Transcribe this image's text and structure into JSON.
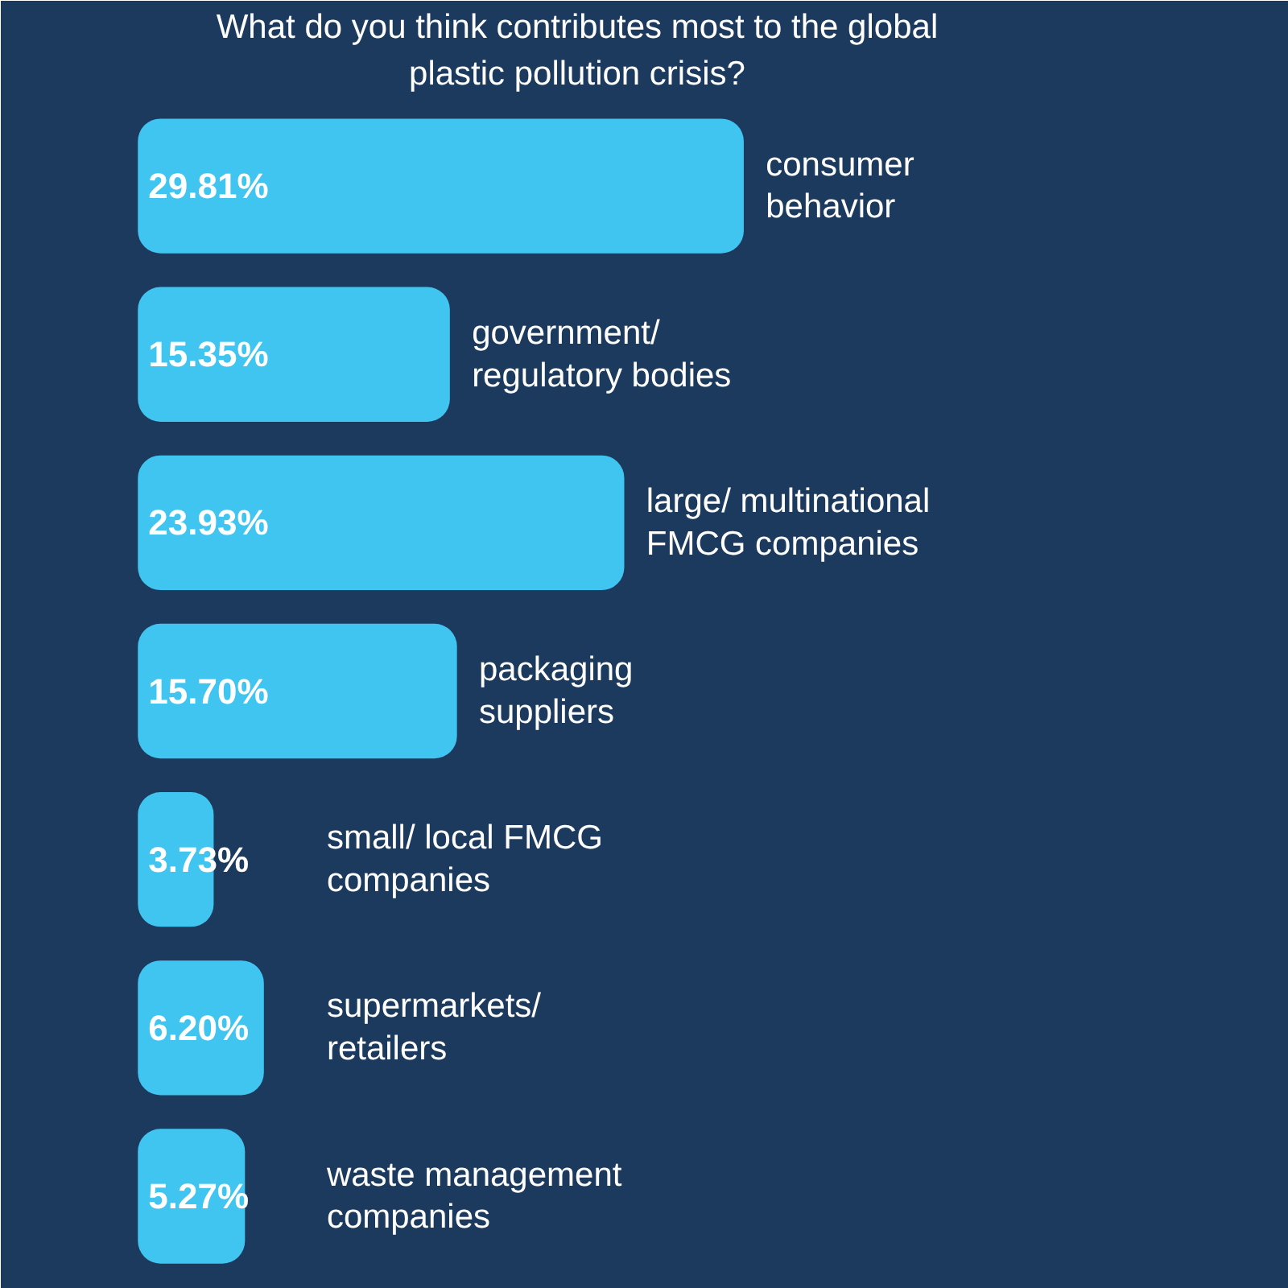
{
  "chart_data": {
    "type": "bar",
    "orientation": "horizontal",
    "title": "What do you think contributes most to the global\nplastic pollution crisis?",
    "categories": [
      "consumer\nbehavior",
      "government/\nregulatory bodies",
      "large/ multinational\nFMCG companies",
      "packaging\nsuppliers",
      "small/ local FMCG\ncompanies",
      "supermarkets/\nretailers",
      "waste management\ncompanies"
    ],
    "values": [
      29.81,
      15.35,
      23.93,
      15.7,
      3.73,
      6.2,
      5.27
    ],
    "value_labels": [
      "29.81%",
      "15.35%",
      "23.93%",
      "15.70%",
      "3.73%",
      "6.20%",
      "5.27%"
    ],
    "color": "#40c4f0",
    "tick_labels": false,
    "grid": false
  }
}
